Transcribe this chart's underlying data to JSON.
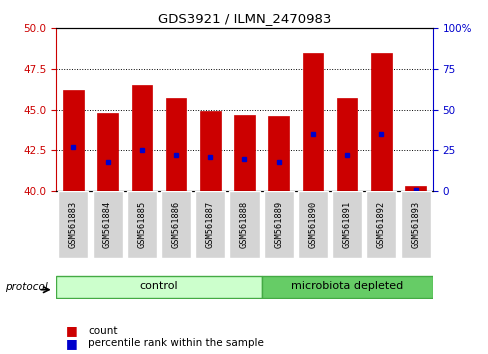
{
  "title": "GDS3921 / ILMN_2470983",
  "samples": [
    "GSM561883",
    "GSM561884",
    "GSM561885",
    "GSM561886",
    "GSM561887",
    "GSM561888",
    "GSM561889",
    "GSM561890",
    "GSM561891",
    "GSM561892",
    "GSM561893"
  ],
  "count_values": [
    46.2,
    44.8,
    46.5,
    45.7,
    44.95,
    44.7,
    44.6,
    48.5,
    45.7,
    48.5,
    40.3
  ],
  "percentile_values": [
    27,
    18,
    25,
    22,
    21,
    20,
    18,
    35,
    22,
    35,
    1
  ],
  "ylim_left": [
    40,
    50
  ],
  "ylim_right": [
    0,
    100
  ],
  "yticks_left": [
    40,
    42.5,
    45,
    47.5,
    50
  ],
  "yticks_right": [
    0,
    25,
    50,
    75,
    100
  ],
  "bar_color": "#cc0000",
  "dot_color": "#0000cc",
  "bar_width": 0.6,
  "bar_bottom": 40,
  "group_labels": [
    "control",
    "microbiota depleted"
  ],
  "group_colors": [
    "#ccffcc",
    "#66cc66"
  ],
  "legend_items": [
    "count",
    "percentile rank within the sample"
  ],
  "legend_colors": [
    "#cc0000",
    "#0000cc"
  ],
  "background_color": "#ffffff",
  "plot_background": "#ffffff",
  "tick_label_color_left": "#cc0000",
  "tick_label_color_right": "#0000cc",
  "gray_box_color": "#d0d0d0",
  "gray_box_edge": "#ffffff"
}
